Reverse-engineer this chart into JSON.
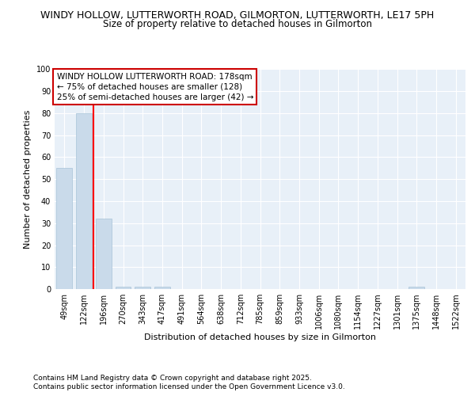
{
  "title_line1": "WINDY HOLLOW, LUTTERWORTH ROAD, GILMORTON, LUTTERWORTH, LE17 5PH",
  "title_line2": "Size of property relative to detached houses in Gilmorton",
  "xlabel": "Distribution of detached houses by size in Gilmorton",
  "ylabel": "Number of detached properties",
  "categories": [
    "49sqm",
    "122sqm",
    "196sqm",
    "270sqm",
    "343sqm",
    "417sqm",
    "491sqm",
    "564sqm",
    "638sqm",
    "712sqm",
    "785sqm",
    "859sqm",
    "933sqm",
    "1006sqm",
    "1080sqm",
    "1154sqm",
    "1227sqm",
    "1301sqm",
    "1375sqm",
    "1448sqm",
    "1522sqm"
  ],
  "values": [
    55,
    80,
    32,
    1,
    1,
    1,
    0,
    0,
    0,
    0,
    0,
    0,
    0,
    0,
    0,
    0,
    0,
    0,
    1,
    0,
    0
  ],
  "bar_color": "#c9daea",
  "bar_edge_color": "#a8c4d8",
  "red_line_x": 1.5,
  "annotation_text": "WINDY HOLLOW LUTTERWORTH ROAD: 178sqm\n← 75% of detached houses are smaller (128)\n25% of semi-detached houses are larger (42) →",
  "annotation_box_color": "#ffffff",
  "annotation_box_edge_color": "#cc0000",
  "ylim": [
    0,
    100
  ],
  "yticks": [
    0,
    10,
    20,
    30,
    40,
    50,
    60,
    70,
    80,
    90,
    100
  ],
  "background_color": "#ffffff",
  "plot_bg_color": "#e8f0f8",
  "grid_color": "#ffffff",
  "footer_line1": "Contains HM Land Registry data © Crown copyright and database right 2025.",
  "footer_line2": "Contains public sector information licensed under the Open Government Licence v3.0.",
  "title_fontsize": 9.0,
  "subtitle_fontsize": 8.5,
  "axis_label_fontsize": 8,
  "tick_fontsize": 7,
  "annotation_fontsize": 7.5,
  "footer_fontsize": 6.5
}
